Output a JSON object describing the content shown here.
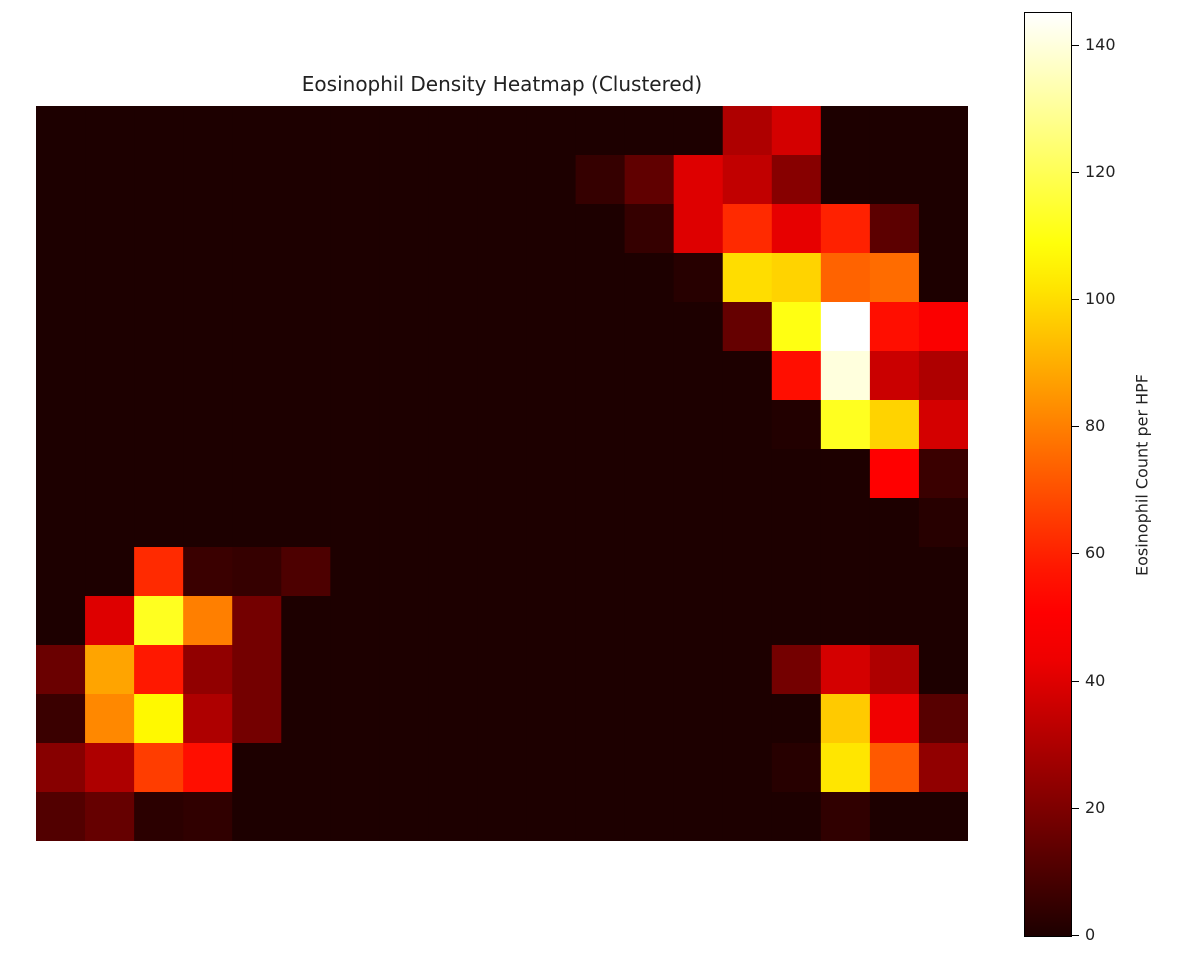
{
  "chart_data": {
    "type": "heatmap",
    "title": "Eosinophil Density Heatmap (Clustered)",
    "colormap": "hot",
    "vmin": 0,
    "vmax": 145,
    "rows": 15,
    "cols": 19,
    "values": [
      [
        0,
        0,
        0,
        0,
        0,
        0,
        0,
        0,
        0,
        0,
        0,
        0,
        0,
        0,
        30,
        38,
        0,
        0,
        0
      ],
      [
        0,
        0,
        0,
        0,
        0,
        0,
        0,
        0,
        0,
        0,
        0,
        5,
        14,
        40,
        34,
        22,
        0,
        0,
        0
      ],
      [
        0,
        0,
        0,
        0,
        0,
        0,
        0,
        0,
        0,
        0,
        0,
        0,
        5,
        40,
        62,
        42,
        60,
        13,
        0
      ],
      [
        0,
        0,
        0,
        0,
        0,
        0,
        0,
        0,
        0,
        0,
        0,
        0,
        0,
        2,
        100,
        98,
        74,
        76,
        0
      ],
      [
        0,
        0,
        0,
        0,
        0,
        0,
        0,
        0,
        0,
        0,
        0,
        0,
        0,
        0,
        15,
        110,
        145,
        56,
        46
      ],
      [
        0,
        0,
        0,
        0,
        0,
        0,
        0,
        0,
        0,
        0,
        0,
        0,
        0,
        0,
        0,
        56,
        140,
        36,
        30
      ],
      [
        0,
        0,
        0,
        0,
        0,
        0,
        0,
        0,
        0,
        0,
        0,
        0,
        0,
        0,
        0,
        1,
        112,
        98,
        38
      ],
      [
        0,
        0,
        0,
        0,
        0,
        0,
        0,
        0,
        0,
        0,
        0,
        0,
        0,
        0,
        0,
        0,
        0,
        52,
        6
      ],
      [
        0,
        0,
        0,
        0,
        0,
        0,
        0,
        0,
        0,
        0,
        0,
        0,
        0,
        0,
        0,
        0,
        0,
        0,
        2
      ],
      [
        0,
        0,
        62,
        6,
        5,
        10,
        0,
        0,
        0,
        0,
        0,
        0,
        0,
        0,
        0,
        0,
        0,
        0,
        0
      ],
      [
        0,
        40,
        112,
        80,
        18,
        0,
        0,
        0,
        0,
        0,
        0,
        0,
        0,
        0,
        0,
        0,
        0,
        0,
        0
      ],
      [
        16,
        88,
        58,
        24,
        18,
        0,
        0,
        0,
        0,
        0,
        0,
        0,
        0,
        0,
        0,
        18,
        38,
        30,
        0
      ],
      [
        6,
        82,
        106,
        30,
        18,
        0,
        0,
        0,
        0,
        0,
        0,
        0,
        0,
        0,
        0,
        0,
        96,
        44,
        12
      ],
      [
        22,
        30,
        66,
        56,
        0,
        0,
        0,
        0,
        0,
        0,
        0,
        0,
        0,
        0,
        0,
        2,
        102,
        72,
        24
      ],
      [
        11,
        15,
        3,
        4,
        0,
        0,
        0,
        0,
        0,
        0,
        0,
        0,
        0,
        0,
        0,
        0,
        4,
        0,
        0
      ]
    ],
    "colorbar": {
      "label": "Eosinophil Count per HPF",
      "ticks": [
        0,
        20,
        40,
        60,
        80,
        100,
        120,
        140
      ]
    }
  }
}
